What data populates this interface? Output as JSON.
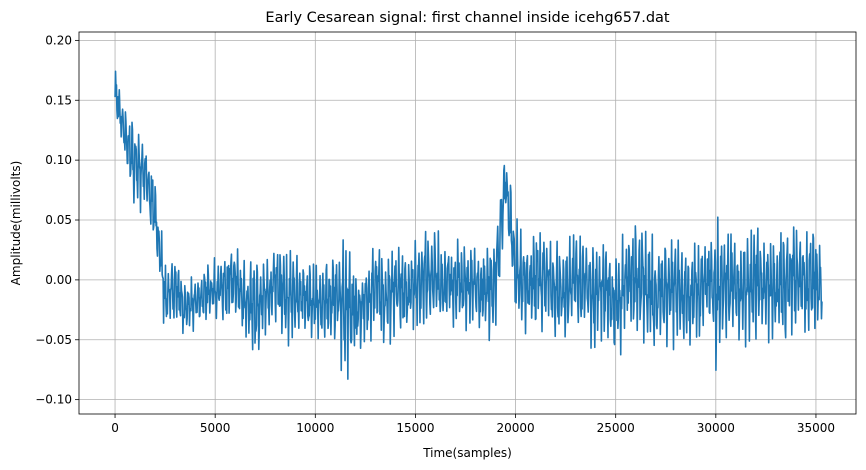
{
  "chart_data": {
    "type": "line",
    "title": "Early Cesarean signal: first channel inside icehg657.dat",
    "xlabel": "Time(samples)",
    "ylabel": "Amplitude(millivolts)",
    "xlim": [
      -1800,
      37000
    ],
    "ylim": [
      -0.112,
      0.207
    ],
    "x_ticks": [
      0,
      5000,
      10000,
      15000,
      20000,
      25000,
      30000,
      35000
    ],
    "x_tick_labels": [
      "0",
      "5000",
      "10000",
      "15000",
      "20000",
      "25000",
      "30000",
      "35000"
    ],
    "y_ticks": [
      -0.1,
      -0.05,
      0.0,
      0.05,
      0.1,
      0.15,
      0.2
    ],
    "y_tick_labels": [
      "−0.10",
      "−0.05",
      "0.00",
      "0.05",
      "0.10",
      "0.15",
      "0.20"
    ],
    "grid": true,
    "legend": "none",
    "series": [
      {
        "color": "#1f77b4",
        "x_start": 0,
        "x_end": 35300,
        "envelope_step": 500,
        "envelope_x": [
          0,
          500,
          1000,
          1500,
          2000,
          2500,
          3000,
          3500,
          4000,
          4500,
          5000,
          5500,
          6000,
          6500,
          7000,
          7500,
          8000,
          8500,
          9000,
          9500,
          10000,
          10500,
          11000,
          11500,
          12000,
          12500,
          13000,
          13500,
          14000,
          14500,
          15000,
          15500,
          16000,
          16500,
          17000,
          17500,
          18000,
          18500,
          19000,
          19500,
          20000,
          20500,
          21000,
          21500,
          22000,
          22500,
          23000,
          23500,
          24000,
          24500,
          25000,
          25500,
          26000,
          26500,
          27000,
          27500,
          28000,
          28500,
          29000,
          29500,
          30000,
          30500,
          31000,
          31500,
          32000,
          32500,
          33000,
          33500,
          34000,
          34500,
          35000,
          35300
        ],
        "envelope_high": [
          0.19,
          0.15,
          0.14,
          0.12,
          0.09,
          0.02,
          0.03,
          0.0,
          0.01,
          0.02,
          0.02,
          0.03,
          0.035,
          0.02,
          0.03,
          0.02,
          0.04,
          0.03,
          0.03,
          0.02,
          0.02,
          0.03,
          0.03,
          0.055,
          0.02,
          0.02,
          0.035,
          0.03,
          0.04,
          0.03,
          0.035,
          0.05,
          0.05,
          0.04,
          0.05,
          0.04,
          0.035,
          0.04,
          0.05,
          0.12,
          0.06,
          0.04,
          0.05,
          0.05,
          0.045,
          0.04,
          0.05,
          0.05,
          0.04,
          0.05,
          0.03,
          0.05,
          0.06,
          0.05,
          0.035,
          0.05,
          0.05,
          0.04,
          0.045,
          0.055,
          0.06,
          0.055,
          0.045,
          0.055,
          0.06,
          0.05,
          0.045,
          0.055,
          0.06,
          0.055,
          0.05,
          0.03
        ],
        "envelope_low": [
          0.13,
          0.09,
          0.05,
          0.06,
          0.02,
          -0.05,
          -0.045,
          -0.05,
          -0.045,
          -0.04,
          -0.035,
          -0.04,
          -0.035,
          -0.06,
          -0.07,
          -0.05,
          -0.045,
          -0.06,
          -0.055,
          -0.05,
          -0.06,
          -0.065,
          -0.06,
          -0.1,
          -0.07,
          -0.06,
          -0.05,
          -0.065,
          -0.05,
          -0.055,
          -0.045,
          -0.05,
          -0.045,
          -0.05,
          -0.055,
          -0.05,
          -0.045,
          -0.06,
          -0.05,
          0.05,
          -0.045,
          -0.05,
          -0.055,
          -0.055,
          -0.06,
          -0.06,
          -0.05,
          -0.055,
          -0.065,
          -0.06,
          -0.08,
          -0.05,
          -0.055,
          -0.06,
          -0.07,
          -0.065,
          -0.06,
          -0.07,
          -0.065,
          -0.06,
          -0.085,
          -0.06,
          -0.055,
          -0.08,
          -0.06,
          -0.055,
          -0.06,
          -0.06,
          -0.055,
          -0.055,
          -0.05,
          -0.04
        ]
      }
    ]
  }
}
